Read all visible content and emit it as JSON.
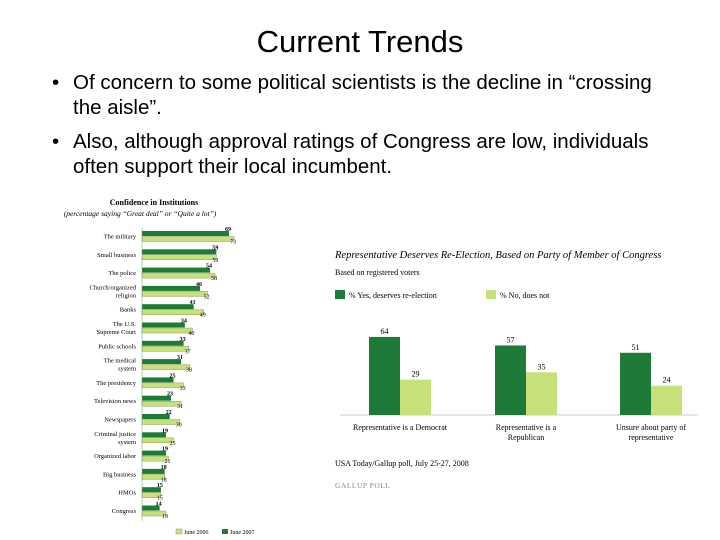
{
  "slide": {
    "title": "Current Trends",
    "bullet_char": "•",
    "bullets": [
      "Of concern to some political scientists is the decline in “crossing the aisle”.",
      "Also, although approval ratings of Congress are low, individuals often support their local incumbent."
    ]
  },
  "colors": {
    "dark": "#1e7a37",
    "light": "#c6e07a",
    "source": "#888888"
  },
  "chart_data": [
    {
      "type": "bar",
      "orientation": "horizontal",
      "title": "Confidence in Institutions",
      "subtitle": "(percentage saying “Great deal” or “Quite a lot”)",
      "categories": [
        "The military",
        "Small business",
        "The police",
        "Church/organized religion",
        "Banks",
        "The U.S. Supreme Court",
        "Public schools",
        "The medical system",
        "The presidency",
        "Television news",
        "Newspapers",
        "Criminal justice system",
        "Organized labor",
        "Big business",
        "HMOs",
        "Congress"
      ],
      "category_lines": [
        [
          "The military"
        ],
        [
          "Small business"
        ],
        [
          "The police"
        ],
        [
          "Church/organized",
          "religion"
        ],
        [
          "Banks"
        ],
        [
          "The U.S.",
          "Supreme Court"
        ],
        [
          "Public schools"
        ],
        [
          "The medical",
          "system"
        ],
        [
          "The presidency"
        ],
        [
          "Television news"
        ],
        [
          "Newspapers"
        ],
        [
          "Criminal justice",
          "system"
        ],
        [
          "Organized labor"
        ],
        [
          "Big business"
        ],
        [
          "HMOs"
        ],
        [
          "Congress"
        ]
      ],
      "series": [
        {
          "name": "June 2006",
          "values": [
            73,
            59,
            58,
            52,
            49,
            40,
            37,
            38,
            33,
            31,
            30,
            25,
            21,
            18,
            15,
            19
          ]
        },
        {
          "name": "June 2007",
          "values": [
            69,
            59,
            54,
            46,
            41,
            34,
            33,
            31,
            25,
            23,
            22,
            19,
            19,
            18,
            15,
            14
          ]
        }
      ],
      "xlim": [
        0,
        100
      ],
      "legend": "bottom"
    },
    {
      "type": "bar",
      "title": "Representative Deserves Re-Election, Based on Party of Member of Congress",
      "subtitle": "Based on registered voters",
      "categories": [
        "Representative is a Democrat",
        "Representative is a Republican",
        "Unsure about party of representative"
      ],
      "category_lines": [
        [
          "Representative is a Democrat"
        ],
        [
          "Representative is a",
          "Republican"
        ],
        [
          "Unsure about party of",
          "representative"
        ]
      ],
      "series": [
        {
          "name": "% Yes, deserves re-election",
          "values": [
            64,
            57,
            51
          ]
        },
        {
          "name": "% No, does not",
          "values": [
            29,
            35,
            24
          ]
        }
      ],
      "ylim": [
        0,
        100
      ],
      "legend": "top-left",
      "source": "USA Today/Gallup poll, July 25-27, 2008",
      "logo": "GALLUP POLL"
    }
  ]
}
